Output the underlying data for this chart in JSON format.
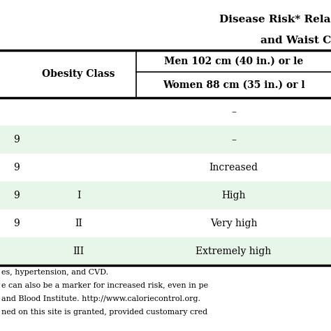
{
  "title_line1": "Disease Risk* Rela",
  "title_line2": "and Waist C",
  "header_col1": "Obesity Class",
  "header_men": "Men 102 cm (40 in.) or le",
  "header_women": "Women 88 cm (35 in.) or l",
  "row_data": [
    {
      "bmi": "",
      "obs": "",
      "risk": "–",
      "bg": "#ffffff"
    },
    {
      "bmi": "9",
      "obs": "",
      "risk": "–",
      "bg": "#e8f5e9"
    },
    {
      "bmi": "9",
      "obs": "",
      "risk": "Increased",
      "bg": "#ffffff"
    },
    {
      "bmi": "9",
      "obs": "I",
      "risk": "High",
      "bg": "#e8f5e9"
    },
    {
      "bmi": "9",
      "obs": "II",
      "risk": "Very high",
      "bg": "#ffffff"
    },
    {
      "bmi": "",
      "obs": "III",
      "risk": "Extremely high",
      "bg": "#e8f5e9"
    }
  ],
  "footer_lines": [
    "es, hypertension, and CVD.",
    "e can also be a marker for increased risk, even in pe",
    "and Blood Institute. http://www.caloriecontrol.org.",
    "ned on this site is granted, provided customary cred"
  ],
  "white": "#ffffff",
  "green": "#dff0d8",
  "black": "#000000",
  "footer_color": "#333333",
  "title_fs": 11,
  "header_fs": 10,
  "body_fs": 10,
  "footer_fs": 8
}
